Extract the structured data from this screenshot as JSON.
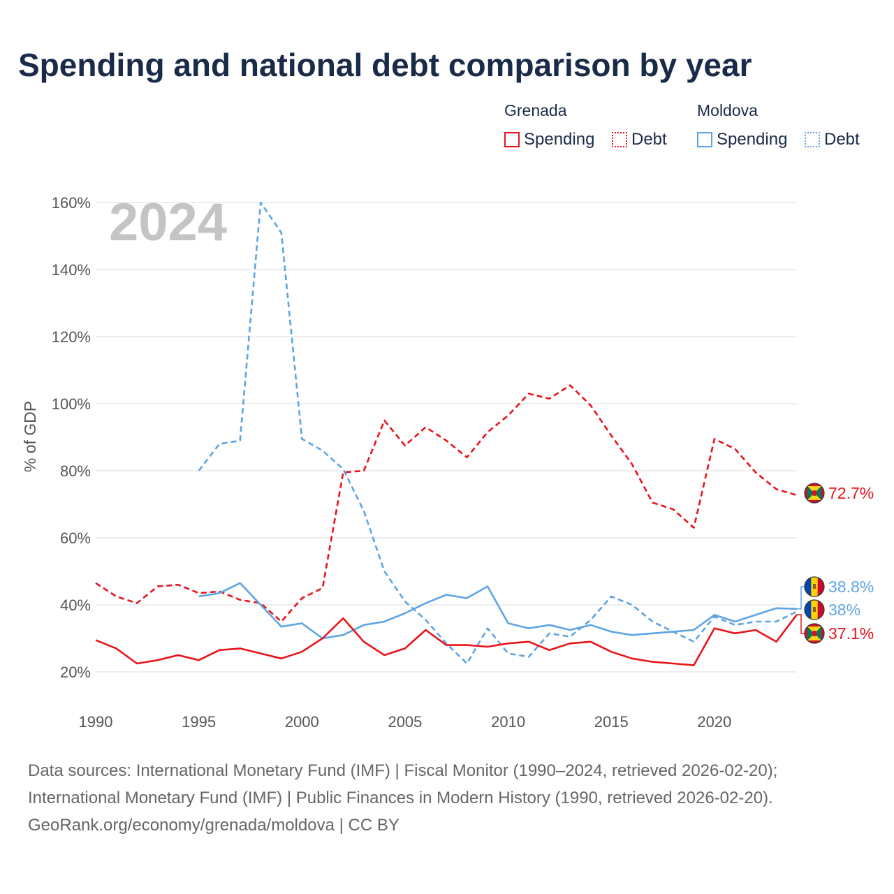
{
  "title": "Spending and national debt comparison by year",
  "legend": {
    "groups": [
      {
        "name": "Grenada",
        "color": "#e8141b",
        "items": [
          {
            "label": "Spending",
            "style": "solid"
          },
          {
            "label": "Debt",
            "style": "dotted"
          }
        ]
      },
      {
        "name": "Moldova",
        "color": "#5ea4e4",
        "items": [
          {
            "label": "Spending",
            "style": "solid"
          },
          {
            "label": "Debt",
            "style": "dotted"
          }
        ]
      }
    ]
  },
  "chart_data": {
    "type": "line",
    "watermark_year": "2024",
    "ylabel": "% of GDP",
    "xlim": [
      1990,
      2024
    ],
    "ylim": [
      10,
      160
    ],
    "yticks": [
      20,
      40,
      60,
      80,
      100,
      120,
      140,
      160
    ],
    "ytick_labels": [
      "20%",
      "40%",
      "60%",
      "80%",
      "100%",
      "120%",
      "140%",
      "160%"
    ],
    "xticks": [
      1990,
      1995,
      2000,
      2005,
      2010,
      2015,
      2020
    ],
    "xtick_labels": [
      "1990",
      "1995",
      "2000",
      "2005",
      "2010",
      "2015",
      "2020"
    ],
    "series": [
      {
        "name": "Grenada Debt",
        "country": "Grenada",
        "kind": "Debt",
        "color": "#e8141b",
        "dash": "dashed",
        "x": [
          1990,
          1991,
          1992,
          1993,
          1994,
          1995,
          1996,
          1997,
          1998,
          1999,
          2000,
          2001,
          2002,
          2003,
          2004,
          2005,
          2006,
          2007,
          2008,
          2009,
          2010,
          2011,
          2012,
          2013,
          2014,
          2015,
          2016,
          2017,
          2018,
          2019,
          2020,
          2021,
          2022,
          2023,
          2024
        ],
        "values": [
          46.5,
          42.5,
          40.5,
          45.5,
          46,
          43.5,
          44,
          41.5,
          40.5,
          35,
          42,
          45,
          79.5,
          80,
          95,
          87.5,
          93,
          89,
          84,
          91.5,
          96.5,
          103,
          101.5,
          105.5,
          99.5,
          90.5,
          82,
          70.5,
          68.5,
          63,
          89.5,
          86.5,
          79.5,
          74.5,
          72.7
        ]
      },
      {
        "name": "Moldova Debt",
        "country": "Moldova",
        "kind": "Debt",
        "color": "#5ea4e4",
        "dash": "dashed",
        "x": [
          1995,
          1996,
          1997,
          1998,
          1999,
          2000,
          2001,
          2002,
          2003,
          2004,
          2005,
          2006,
          2007,
          2008,
          2009,
          2010,
          2011,
          2012,
          2013,
          2014,
          2015,
          2016,
          2017,
          2018,
          2019,
          2020,
          2021,
          2022,
          2023,
          2024
        ],
        "values": [
          80,
          88,
          89,
          160,
          151,
          89.5,
          86,
          80.5,
          68,
          50,
          41,
          35.5,
          28.5,
          22.5,
          33,
          25.5,
          24.5,
          31.5,
          30.5,
          35.5,
          42.5,
          40,
          35,
          32,
          29,
          36.5,
          34,
          35,
          35,
          38
        ]
      },
      {
        "name": "Moldova Spending",
        "country": "Moldova",
        "kind": "Spending",
        "color": "#5ea4e4",
        "dash": "solid",
        "x": [
          1995,
          1996,
          1997,
          1998,
          1999,
          2000,
          2001,
          2002,
          2003,
          2004,
          2005,
          2006,
          2007,
          2008,
          2009,
          2010,
          2011,
          2012,
          2013,
          2014,
          2015,
          2016,
          2017,
          2018,
          2019,
          2020,
          2021,
          2022,
          2023,
          2024
        ],
        "values": [
          42.5,
          43.5,
          46.5,
          40,
          33.5,
          34.5,
          30,
          31,
          34,
          35,
          37.5,
          40.5,
          43,
          42,
          45.5,
          34.5,
          33,
          34,
          32.5,
          34,
          32,
          31,
          31.5,
          32,
          32.5,
          37,
          35,
          37,
          39,
          38.8
        ]
      },
      {
        "name": "Grenada Spending",
        "country": "Grenada",
        "kind": "Spending",
        "color": "#e8141b",
        "dash": "solid",
        "x": [
          1990,
          1991,
          1992,
          1993,
          1994,
          1995,
          1996,
          1997,
          1998,
          1999,
          2000,
          2001,
          2002,
          2003,
          2004,
          2005,
          2006,
          2007,
          2008,
          2009,
          2010,
          2011,
          2012,
          2013,
          2014,
          2015,
          2016,
          2017,
          2018,
          2019,
          2020,
          2021,
          2022,
          2023,
          2024
        ],
        "values": [
          29.5,
          27,
          22.5,
          23.5,
          25,
          23.5,
          26.5,
          27,
          25.5,
          24,
          26,
          30,
          36,
          29,
          25,
          27,
          32.5,
          28,
          28,
          27.5,
          28.5,
          29,
          26.5,
          28.5,
          29,
          26,
          24,
          23,
          22.5,
          22,
          33,
          31.5,
          32.5,
          29,
          37.1
        ]
      }
    ],
    "end_labels": [
      {
        "series": "Grenada Debt",
        "value": 72.7,
        "text": "72.7%",
        "color": "#e8141b",
        "flag": "grenada"
      },
      {
        "series": "Moldova Spending",
        "value": 38.8,
        "text": "38.8%",
        "color": "#5ea4e4",
        "flag": "moldova"
      },
      {
        "series": "Moldova Debt",
        "value": 38,
        "text": "38%",
        "color": "#5ea4e4",
        "flag": "moldova"
      },
      {
        "series": "Grenada Spending",
        "value": 37.1,
        "text": "37.1%",
        "color": "#e8141b",
        "flag": "grenada"
      }
    ]
  },
  "source": {
    "lines": [
      "Data sources: International Monetary Fund (IMF) | Fiscal Monitor (1990–2024, retrieved 2026-02-20);",
      "International Monetary Fund (IMF) | Public Finances in Modern History (1990, retrieved 2026-02-20).",
      "GeoRank.org/economy/grenada/moldova | CC BY"
    ]
  }
}
